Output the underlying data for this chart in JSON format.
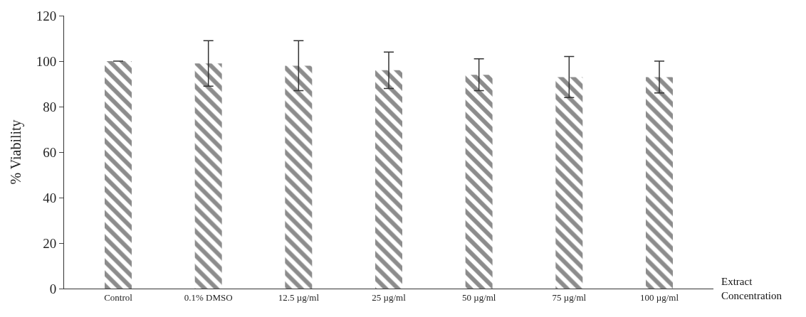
{
  "chart_data": {
    "type": "bar",
    "ylabel": "% Viability",
    "xlabel": "Extract\nConcentration",
    "categories": [
      "Control",
      "0.1% DMSO",
      "12.5 µg/ml",
      "25 µg/ml",
      "50 µg/ml",
      "75 µg/ml",
      "100 µg/ml"
    ],
    "values": [
      100,
      99,
      98,
      96,
      94,
      93,
      93
    ],
    "errors": [
      null,
      10,
      11,
      8,
      7,
      9,
      7
    ],
    "color": "#1a1a1a",
    "ylim": [
      0,
      120
    ],
    "yticks": [
      0,
      20,
      40,
      60,
      80,
      100,
      120
    ]
  }
}
